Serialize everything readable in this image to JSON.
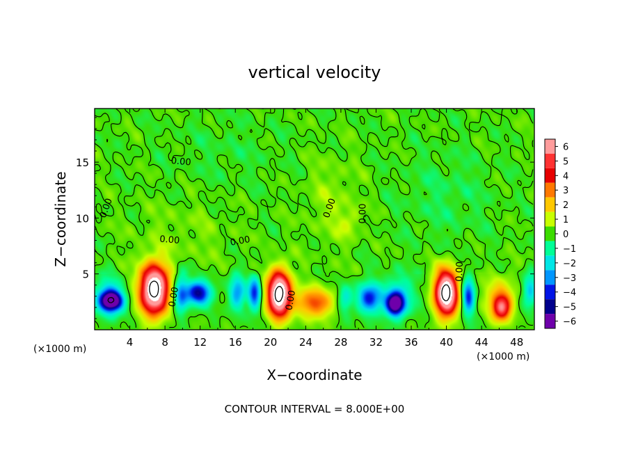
{
  "chart_data": {
    "type": "heatmap",
    "title": "vertical velocity",
    "xlabel": "X−coordinate",
    "ylabel": "Z−coordinate",
    "x_unit": "(×1000 m)",
    "z_unit": "(×1000 m)",
    "xlim": [
      0,
      50
    ],
    "ylim": [
      0,
      19.8
    ],
    "x_ticks": [
      4,
      8,
      12,
      16,
      20,
      24,
      28,
      32,
      36,
      40,
      44,
      48
    ],
    "y_ticks": [
      5,
      10,
      15
    ],
    "colorbar": {
      "ticks": [
        6,
        5,
        4,
        3,
        2,
        1,
        0,
        -1,
        -2,
        -3,
        -4,
        -5,
        -6
      ],
      "tick_labels": [
        "6",
        "5",
        "4",
        "3",
        "2",
        "1",
        "0",
        "−1",
        "−2",
        "−3",
        "−4",
        "−5",
        "−6"
      ],
      "colors": [
        "#ff9c9c",
        "#ff3232",
        "#e60000",
        "#ff7800",
        "#ffc800",
        "#c8ff00",
        "#3cdc00",
        "#00ff96",
        "#00e6e6",
        "#0096ff",
        "#0014e6",
        "#00008c",
        "#6e00aa"
      ]
    },
    "background_value": 0,
    "features": [
      {
        "x": 2.0,
        "z": 2.6,
        "sx": 1.2,
        "sz": 0.8,
        "w": -6
      },
      {
        "x": 1.5,
        "z": 2.8,
        "sx": 1.5,
        "sz": 1.6,
        "w": -3
      },
      {
        "x": 6.8,
        "z": 3.6,
        "sx": 1.6,
        "sz": 2.2,
        "w": 9
      },
      {
        "x": 9.8,
        "z": 3.2,
        "sx": 0.8,
        "sz": 1.8,
        "w": -3
      },
      {
        "x": 11.8,
        "z": 3.3,
        "sx": 1.4,
        "sz": 1.0,
        "w": -5
      },
      {
        "x": 16.2,
        "z": 3.3,
        "sx": 0.9,
        "sz": 1.5,
        "w": -3
      },
      {
        "x": 18.2,
        "z": 3.3,
        "sx": 0.7,
        "sz": 1.4,
        "w": -4
      },
      {
        "x": 21.0,
        "z": 3.2,
        "sx": 1.3,
        "sz": 2.0,
        "w": 9
      },
      {
        "x": 25.0,
        "z": 2.4,
        "sx": 2.2,
        "sz": 1.3,
        "w": 3.4
      },
      {
        "x": 28.5,
        "z": 2.8,
        "sx": 0.8,
        "sz": 1.2,
        "w": -2
      },
      {
        "x": 31.2,
        "z": 2.8,
        "sx": 1.3,
        "sz": 1.3,
        "w": -4
      },
      {
        "x": 34.2,
        "z": 2.3,
        "sx": 1.0,
        "sz": 1.0,
        "w": -6
      },
      {
        "x": 34.5,
        "z": 3.0,
        "sx": 1.8,
        "sz": 1.8,
        "w": -2
      },
      {
        "x": 40.0,
        "z": 3.3,
        "sx": 1.3,
        "sz": 2.0,
        "w": 9
      },
      {
        "x": 42.5,
        "z": 3.0,
        "sx": 0.7,
        "sz": 1.6,
        "w": -4
      },
      {
        "x": 46.3,
        "z": 2.0,
        "sx": 1.1,
        "sz": 1.2,
        "w": 5
      },
      {
        "x": 46.0,
        "z": 3.2,
        "sx": 1.8,
        "sz": 1.8,
        "w": 1.5
      },
      {
        "x": 49.5,
        "z": 3.5,
        "sx": 0.8,
        "sz": 1.5,
        "w": -2.5
      },
      {
        "x": 10.0,
        "z": 8.5,
        "sx": 6.0,
        "sz": 3.0,
        "w": 0.4
      },
      {
        "x": 27.0,
        "z": 11.5,
        "sx": 3.0,
        "sz": 4.0,
        "w": 0.6
      },
      {
        "x": 29.0,
        "z": 9.5,
        "sx": 1.2,
        "sz": 1.2,
        "w": 0.8
      },
      {
        "x": 40.0,
        "z": 12.0,
        "sx": 5.0,
        "sz": 4.0,
        "w": -0.5
      },
      {
        "x": 15.0,
        "z": 16.0,
        "sx": 6.0,
        "sz": 3.0,
        "w": -0.3
      }
    ],
    "contour_levels": [
      -8,
      0,
      8
    ],
    "contour_labels": [
      {
        "text": "0.00",
        "x": 1.6,
        "z": 10.8,
        "angle": -70
      },
      {
        "x": 9.3,
        "z": 2.9,
        "text": "0.00",
        "angle": -80
      },
      {
        "x": 8.5,
        "z": 7.8,
        "text": "0.00",
        "angle": 5
      },
      {
        "x": 9.8,
        "z": 14.8,
        "text": "0.00",
        "angle": 5
      },
      {
        "x": 16.6,
        "z": 7.7,
        "text": "0.00",
        "angle": -10
      },
      {
        "x": 22.6,
        "z": 2.6,
        "text": "0.00",
        "angle": -80
      },
      {
        "x": 27.0,
        "z": 10.8,
        "text": "0.00",
        "angle": -70
      },
      {
        "x": 30.8,
        "z": 10.4,
        "text": "0.00",
        "angle": -90
      },
      {
        "x": 41.8,
        "z": 5.2,
        "text": "0.00",
        "angle": -88
      }
    ]
  },
  "footer": {
    "contour_interval": "CONTOUR INTERVAL = 8.000E+00"
  }
}
